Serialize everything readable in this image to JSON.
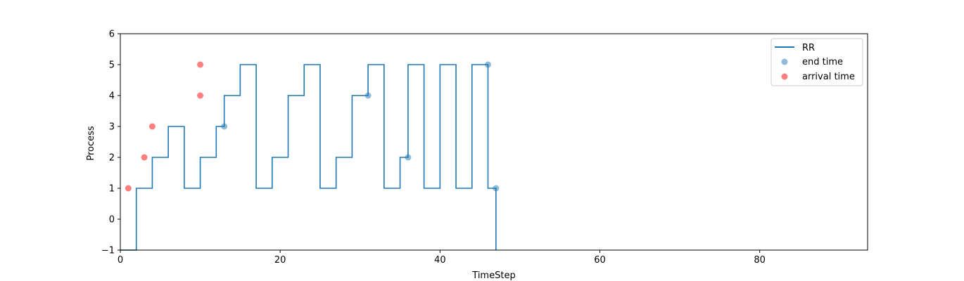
{
  "chart_data": {
    "type": "line",
    "title": "",
    "xlabel": "TimeStep",
    "ylabel": "Process",
    "xlim": [
      0,
      93.5
    ],
    "ylim": [
      -1,
      6
    ],
    "xticks": [
      0,
      20,
      40,
      60,
      80
    ],
    "yticks": [
      -1,
      0,
      1,
      2,
      3,
      4,
      5,
      6
    ],
    "xtick_labels": [
      "0",
      "20",
      "40",
      "60",
      "80"
    ],
    "ytick_labels": [
      "−1",
      "0",
      "1",
      "2",
      "3",
      "4",
      "5",
      "6"
    ],
    "grid": false,
    "legend_position": "top-right",
    "legend": [
      "RR",
      "end time",
      "arrival time"
    ],
    "colors": {
      "rr": "#1f77b4",
      "end_time": "#1f77b4",
      "arrival_time": "#ff0000"
    },
    "series": [
      {
        "name": "RR",
        "kind": "step-post",
        "x": [
          0,
          2,
          4,
          6,
          8,
          10,
          12,
          13,
          15,
          17,
          19,
          21,
          23,
          25,
          27,
          29,
          31,
          33,
          35,
          36,
          38,
          40,
          42,
          44,
          46,
          47
        ],
        "y": [
          -1,
          1,
          2,
          3,
          1,
          2,
          3,
          4,
          5,
          1,
          2,
          4,
          5,
          1,
          2,
          4,
          5,
          1,
          2,
          5,
          1,
          5,
          1,
          5,
          1,
          -1
        ]
      },
      {
        "name": "end time",
        "kind": "scatter",
        "x": [
          13,
          31,
          36,
          46,
          47
        ],
        "y": [
          3,
          4,
          2,
          5,
          1
        ]
      },
      {
        "name": "arrival time",
        "kind": "scatter",
        "x": [
          1,
          3,
          4,
          10,
          10
        ],
        "y": [
          1,
          2,
          3,
          4,
          5
        ]
      }
    ]
  }
}
